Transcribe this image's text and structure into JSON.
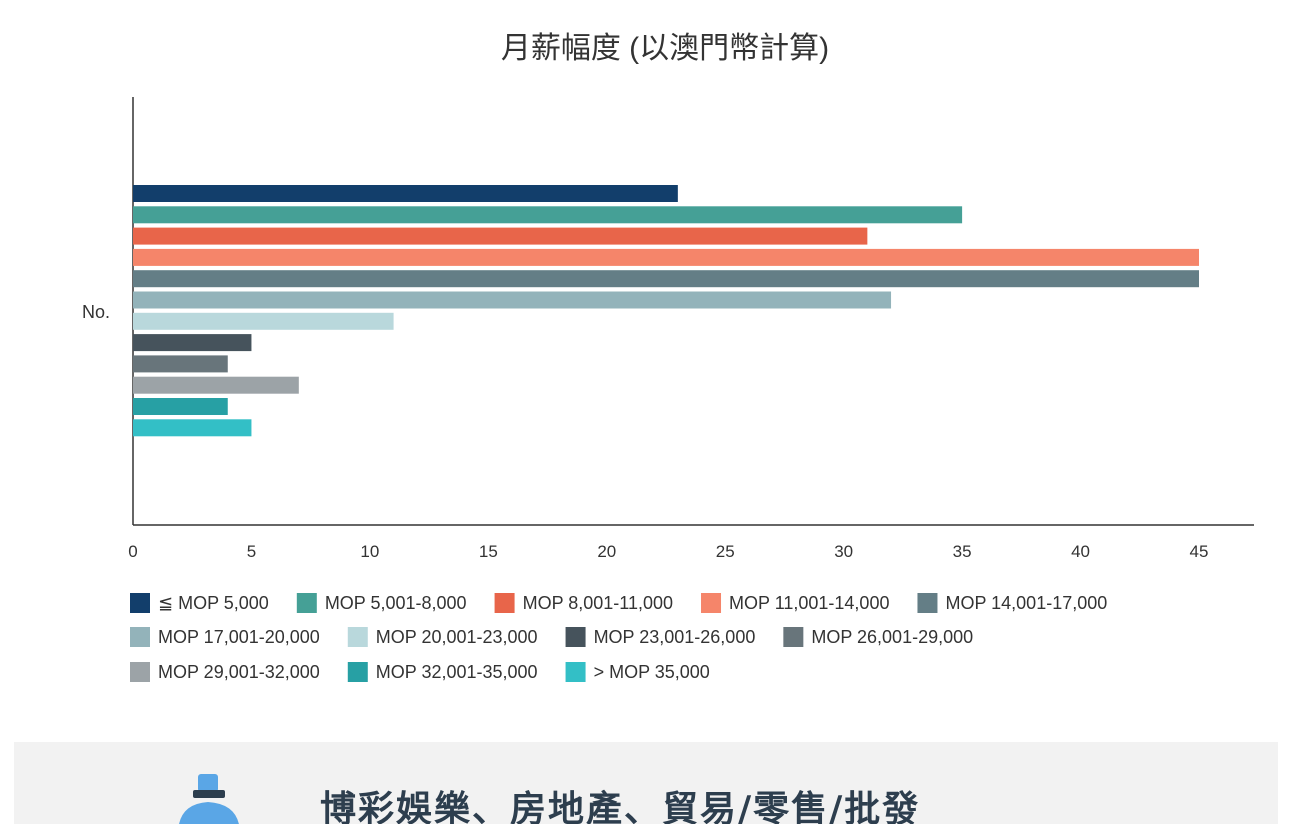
{
  "chart_data": {
    "type": "bar",
    "orientation": "horizontal",
    "title": "月薪幅度 (以澳門幣計算)",
    "categories": [
      "No."
    ],
    "series": [
      {
        "name": "≦ MOP 5,000",
        "color": "#123e6b",
        "values": [
          23
        ]
      },
      {
        "name": "MOP 5,001-8,000",
        "color": "#45a096",
        "values": [
          35
        ]
      },
      {
        "name": "MOP 8,001-11,000",
        "color": "#e8654a",
        "values": [
          31
        ]
      },
      {
        "name": "MOP 11,001-14,000",
        "color": "#f5856a",
        "values": [
          45
        ]
      },
      {
        "name": "MOP 14,001-17,000",
        "color": "#647e86",
        "values": [
          45
        ]
      },
      {
        "name": "MOP 17,001-20,000",
        "color": "#93b3ba",
        "values": [
          32
        ]
      },
      {
        "name": "MOP 20,001-23,000",
        "color": "#b9d8dc",
        "values": [
          11
        ]
      },
      {
        "name": "MOP 23,001-26,000",
        "color": "#46535c",
        "values": [
          5
        ]
      },
      {
        "name": "MOP 26,001-29,000",
        "color": "#68757b",
        "values": [
          4
        ]
      },
      {
        "name": "MOP 29,001-32,000",
        "color": "#9ca3a7",
        "values": [
          7
        ]
      },
      {
        "name": "MOP 32,001-35,000",
        "color": "#27a0a4",
        "values": [
          4
        ]
      },
      {
        "name": "> MOP 35,000",
        "color": "#33bfc6",
        "values": [
          5
        ]
      }
    ],
    "xlim": [
      0,
      47
    ],
    "xticks": [
      0,
      5,
      10,
      15,
      20,
      25,
      30,
      35,
      40,
      45
    ],
    "grid": false,
    "legend_position": "bottom"
  },
  "banner": {
    "title": "博彩娛樂、房地產、貿易/零售/批發",
    "icon": "bottle-icon",
    "background": "#f2f2f2",
    "icon_color": "#5aa6e6"
  }
}
